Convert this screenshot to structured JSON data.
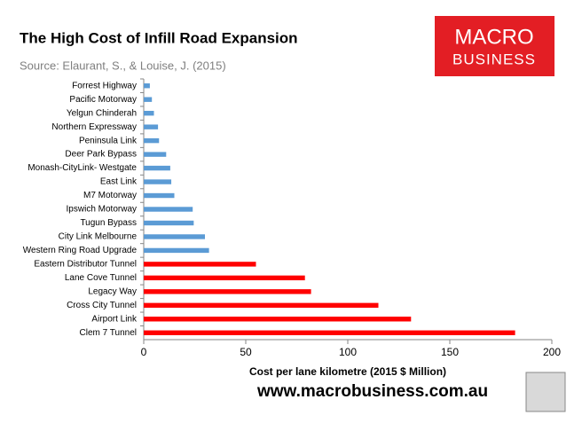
{
  "chart_data": {
    "type": "barh",
    "title": "The High Cost of Infill Road Expansion",
    "subtitle": "Source: Elaurant, S., & Louise, J. (2015)",
    "x_label": "Cost per lane kilometre (2015 $ Million)",
    "categories": [
      "Forrest Highway",
      "Pacific Motorway",
      "Yelgun Chinderah",
      "Northern Expressway",
      "Peninsula Link",
      "Deer Park Bypass",
      "Monash-CityLink- Westgate",
      "East Link",
      "M7 Motorway",
      "Ipswich Motorway",
      "Tugun Bypass",
      "City Link Melbourne",
      "Western Ring Road Upgrade",
      "Eastern Distributor Tunnel",
      "Lane Cove Tunnel",
      "Legacy Way",
      "Cross City Tunnel",
      "Airport Link",
      "Clem 7 Tunnel"
    ],
    "values": [
      3,
      4,
      5,
      7,
      7.5,
      11,
      13,
      13.5,
      15,
      24,
      24.5,
      30,
      32,
      55,
      79,
      82,
      115,
      131,
      182
    ],
    "colors": [
      "#5b9bd5",
      "#5b9bd5",
      "#5b9bd5",
      "#5b9bd5",
      "#5b9bd5",
      "#5b9bd5",
      "#5b9bd5",
      "#5b9bd5",
      "#5b9bd5",
      "#5b9bd5",
      "#5b9bd5",
      "#5b9bd5",
      "#5b9bd5",
      "#ff0000",
      "#ff0000",
      "#ff0000",
      "#ff0000",
      "#ff0000",
      "#ff0000"
    ],
    "xlim": [
      0,
      200
    ],
    "xticks": [
      0,
      50,
      100,
      150,
      200
    ]
  },
  "logo": {
    "line1": "MACRO",
    "line2": "BUSINESS"
  },
  "footer": "www.macrobusiness.com.au"
}
